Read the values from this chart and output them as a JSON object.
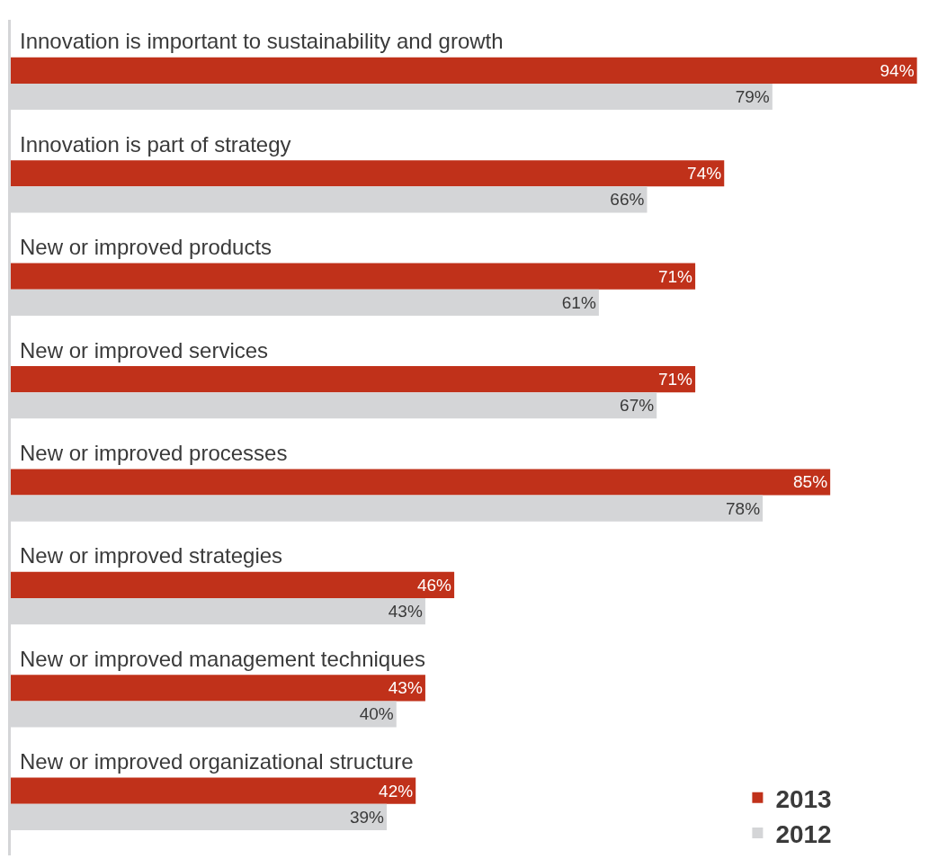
{
  "chart_data": {
    "type": "bar",
    "orientation": "horizontal",
    "categories": [
      "Innovation is important to sustainability and growth",
      "Innovation is part of strategy",
      "New or improved products",
      "New or improved services",
      "New or improved processes",
      "New or improved strategies",
      "New or improved management techniques",
      "New or improved organizational structure"
    ],
    "series": [
      {
        "name": "2013",
        "color": "#c0311a",
        "values": [
          94,
          74,
          71,
          71,
          85,
          46,
          43,
          42
        ],
        "value_labels": [
          "94%",
          "74%",
          "71%",
          "71%",
          "85%",
          "46%",
          "43%",
          "42%"
        ]
      },
      {
        "name": "2012",
        "color": "#d4d5d7",
        "values": [
          79,
          66,
          61,
          67,
          78,
          43,
          40,
          39
        ],
        "value_labels": [
          "79%",
          "66%",
          "61%",
          "67%",
          "78%",
          "43%",
          "40%",
          "39%"
        ]
      }
    ],
    "xlim": [
      0,
      94.5
    ],
    "legend": "bottom right",
    "tick_labels": false
  }
}
